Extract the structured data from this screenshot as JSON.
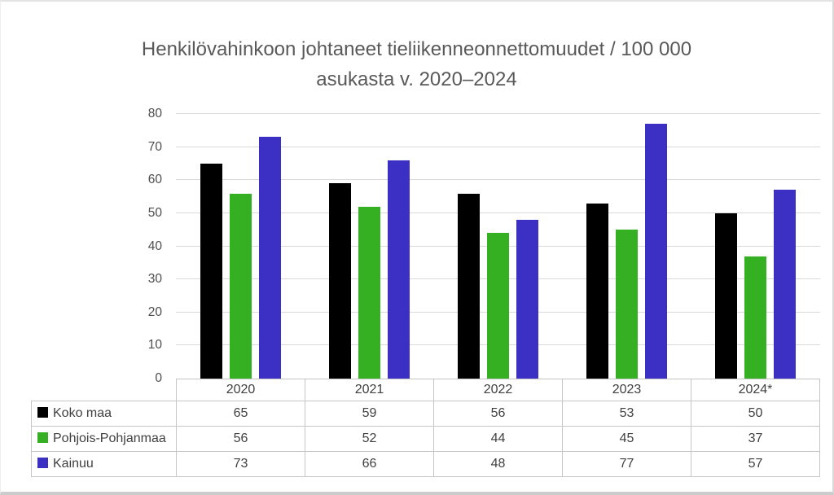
{
  "header": {
    "line1": "Henkilövahinkoon johtaneet tieliikenneonnettomuudet / 100 000",
    "line2": "asukasta v. 2020–2024"
  },
  "colors": {
    "koko_maa": "#000000",
    "pohjois_pohjanmaa": "#35B022",
    "kainuu": "#3B2FC4",
    "gridline": "#D9D9D9",
    "table_border": "#C6C6C6",
    "title_text": "#595959",
    "body_text": "#404040"
  },
  "chart_data": {
    "type": "bar",
    "title": "Henkilövahinkoon johtaneet tieliikenneonnettomuudet / 100 000 asukasta v. 2020–2024",
    "categories": [
      "2020",
      "2021",
      "2022",
      "2023",
      "2024*"
    ],
    "series": [
      {
        "name": "Koko maa",
        "color": "#000000",
        "values": [
          65,
          59,
          56,
          53,
          50
        ]
      },
      {
        "name": "Pohjois-Pohjanmaa",
        "color": "#35B022",
        "values": [
          56,
          52,
          44,
          45,
          37
        ]
      },
      {
        "name": "Kainuu",
        "color": "#3B2FC4",
        "values": [
          73,
          66,
          48,
          77,
          57
        ]
      }
    ],
    "xlabel": "",
    "ylabel": "",
    "ylim": [
      0,
      80
    ],
    "yticks": [
      0,
      10,
      20,
      30,
      40,
      50,
      60,
      70,
      80
    ],
    "grid": true,
    "legend_position": "table-left"
  }
}
